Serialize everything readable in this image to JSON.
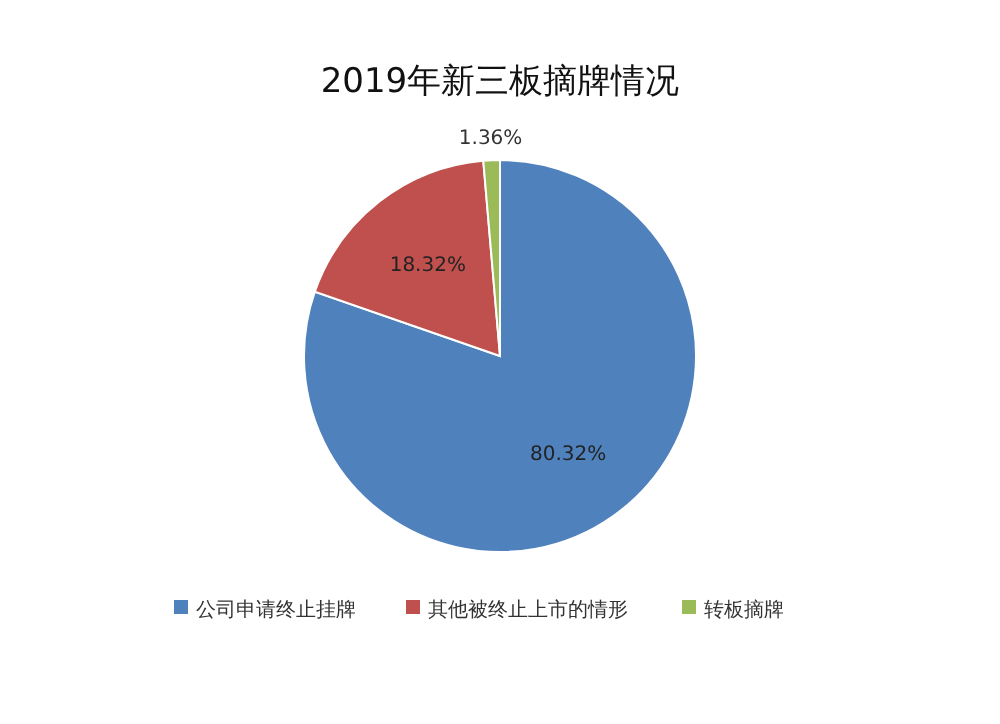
{
  "chart_data": {
    "type": "pie",
    "title": "2019年新三板摘牌情况",
    "categories": [
      "公司申请终止挂牌",
      "其他被终止上市的情形",
      "转板摘牌"
    ],
    "values": [
      80.32,
      18.32,
      1.36
    ],
    "colors": [
      "#4f81bd",
      "#c0504d",
      "#9bbb59"
    ],
    "value_labels": [
      "80.32%",
      "18.32%",
      "1.36%"
    ],
    "legend": "bottom"
  }
}
